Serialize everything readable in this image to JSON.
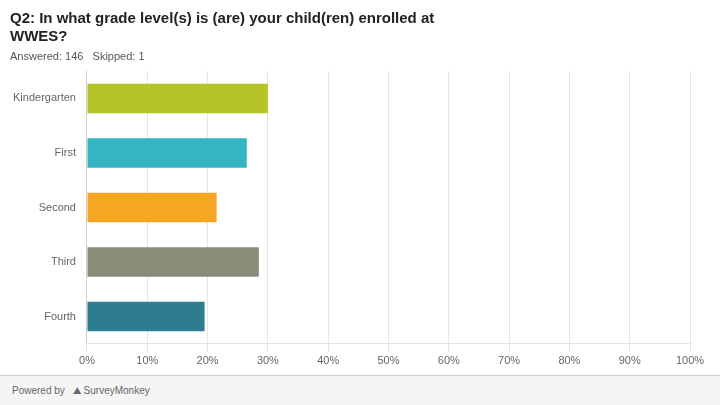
{
  "chart_data": {
    "type": "bar",
    "orientation": "horizontal",
    "title": [
      "Q2: In what grade level(s) is (are) your child(ren) enrolled at",
      "WWES?"
    ],
    "subtitle": "Answered: 146   Skipped: 1",
    "annotations": [
      "Powered by",
      "⛰ SurveyMonkey"
    ],
    "categories": [
      "Kindergarten",
      "First",
      "Second",
      "Third",
      "Fourth"
    ],
    "values": [
      0.3,
      0.265,
      0.215,
      0.285,
      0.195
    ],
    "colors": [
      "#b5c427",
      "#35b5c1",
      "#f5a623",
      "#8b8b7a",
      "#2e7c8f"
    ],
    "xlim": [
      0,
      1.0
    ],
    "xticks": [
      {
        "value": 0.0,
        "label": "0%"
      },
      {
        "value": 0.1,
        "label": "10%"
      },
      {
        "value": 0.2,
        "label": "20%"
      },
      {
        "value": 0.3,
        "label": "30%"
      },
      {
        "value": 0.4,
        "label": "40%"
      },
      {
        "value": 0.5,
        "label": "50%"
      },
      {
        "value": 0.6,
        "label": "60%"
      },
      {
        "value": 0.7,
        "label": "70%"
      },
      {
        "value": 0.8,
        "label": "80%"
      },
      {
        "value": 0.9,
        "label": "90%"
      },
      {
        "value": 1.0,
        "label": "100%"
      }
    ],
    "grid": true
  }
}
